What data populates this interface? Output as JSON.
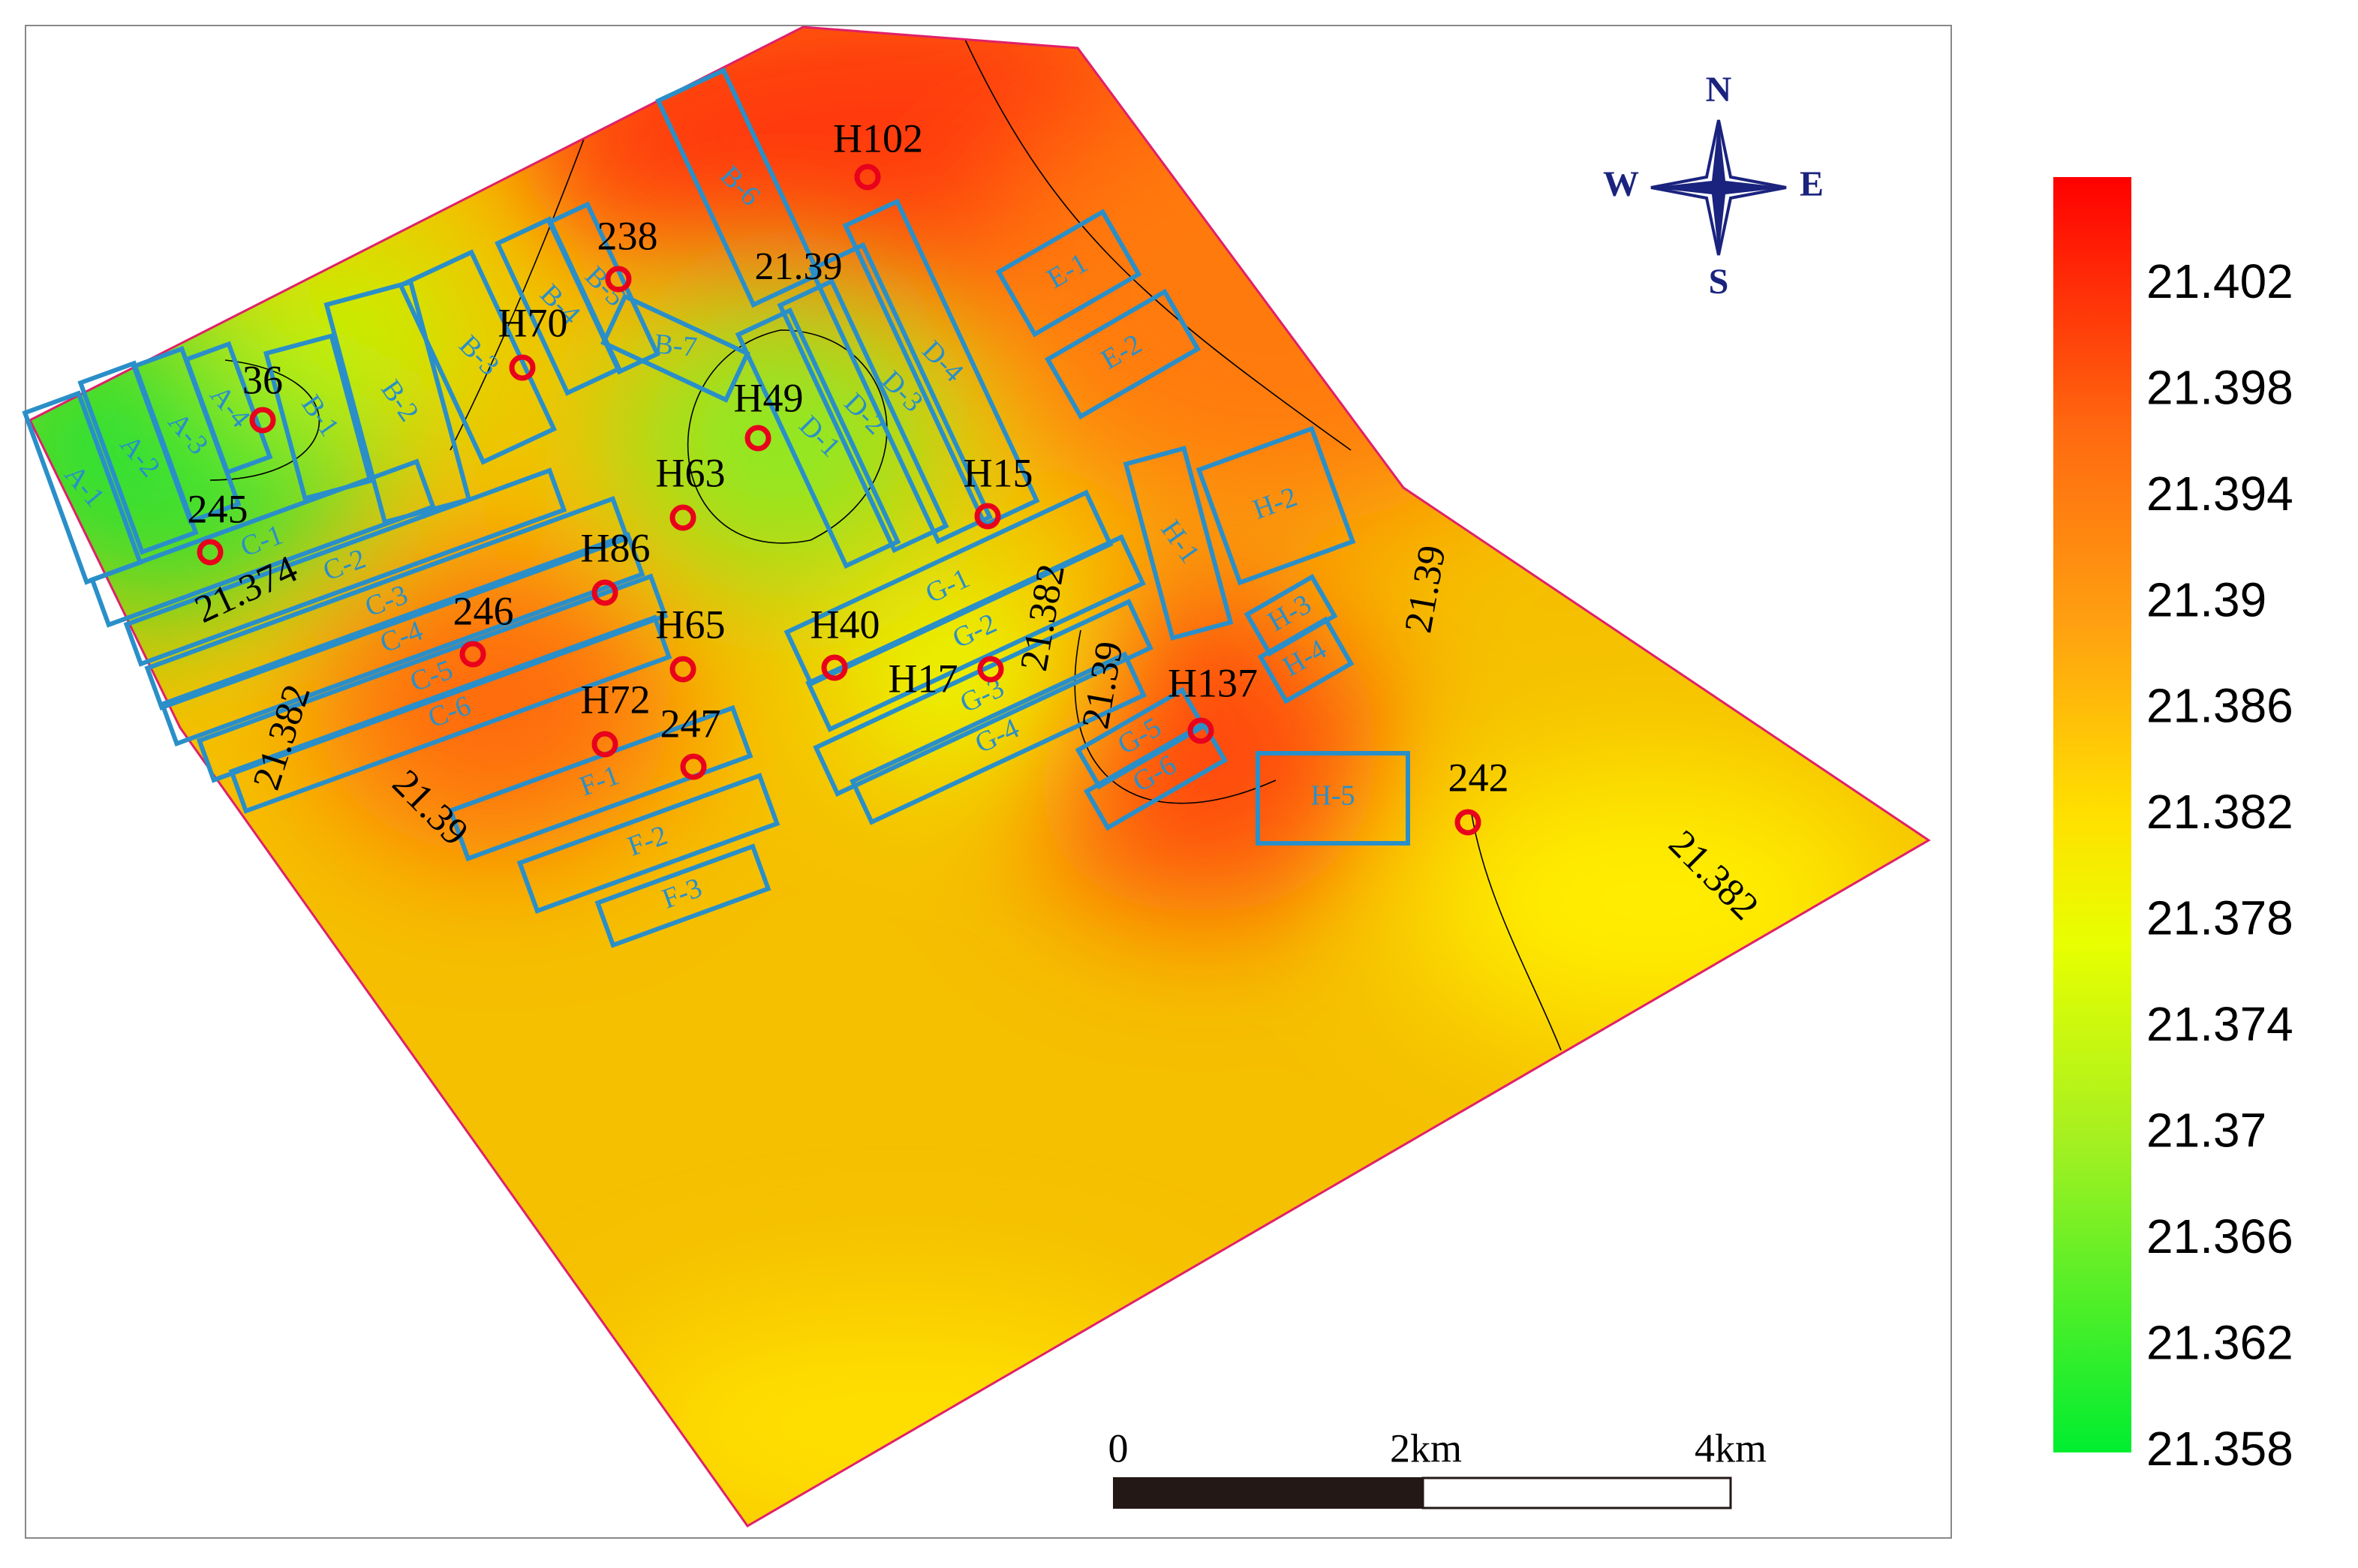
{
  "map": {
    "wells": [
      "H102",
      "238",
      "H70",
      "36",
      "H49",
      "H63",
      "H15",
      "245",
      "H86",
      "246",
      "H65",
      "H40",
      "H17",
      "H72",
      "247",
      "H137",
      "242"
    ],
    "blocks": [
      "A-1",
      "A-2",
      "A-3",
      "A-4",
      "B-1",
      "B-2",
      "B-3",
      "B-4",
      "B-5",
      "B-6",
      "B-7",
      "C-1",
      "C-2",
      "C-3",
      "C-4",
      "C-5",
      "C-6",
      "D-1",
      "D-2",
      "D-3",
      "D-4",
      "E-1",
      "E-2",
      "F-1",
      "F-2",
      "F-3",
      "G-1",
      "G-2",
      "G-3",
      "G-4",
      "G-5",
      "G-6",
      "H-1",
      "H-2",
      "H-3",
      "H-4",
      "H-5"
    ],
    "contour_labels": [
      "21.39",
      "21.374",
      "21.382",
      "21.39",
      "21.382",
      "21.39",
      "21.39",
      "21.382"
    ],
    "compass": {
      "n": "N",
      "s": "S",
      "w": "W",
      "e": "E"
    },
    "scale_bar": {
      "labels": [
        "0",
        "2km",
        "4km"
      ]
    },
    "colorbar": {
      "ticks": [
        21.402,
        21.398,
        21.394,
        21.39,
        21.386,
        21.382,
        21.378,
        21.374,
        21.37,
        21.366,
        21.362,
        21.358
      ]
    }
  }
}
